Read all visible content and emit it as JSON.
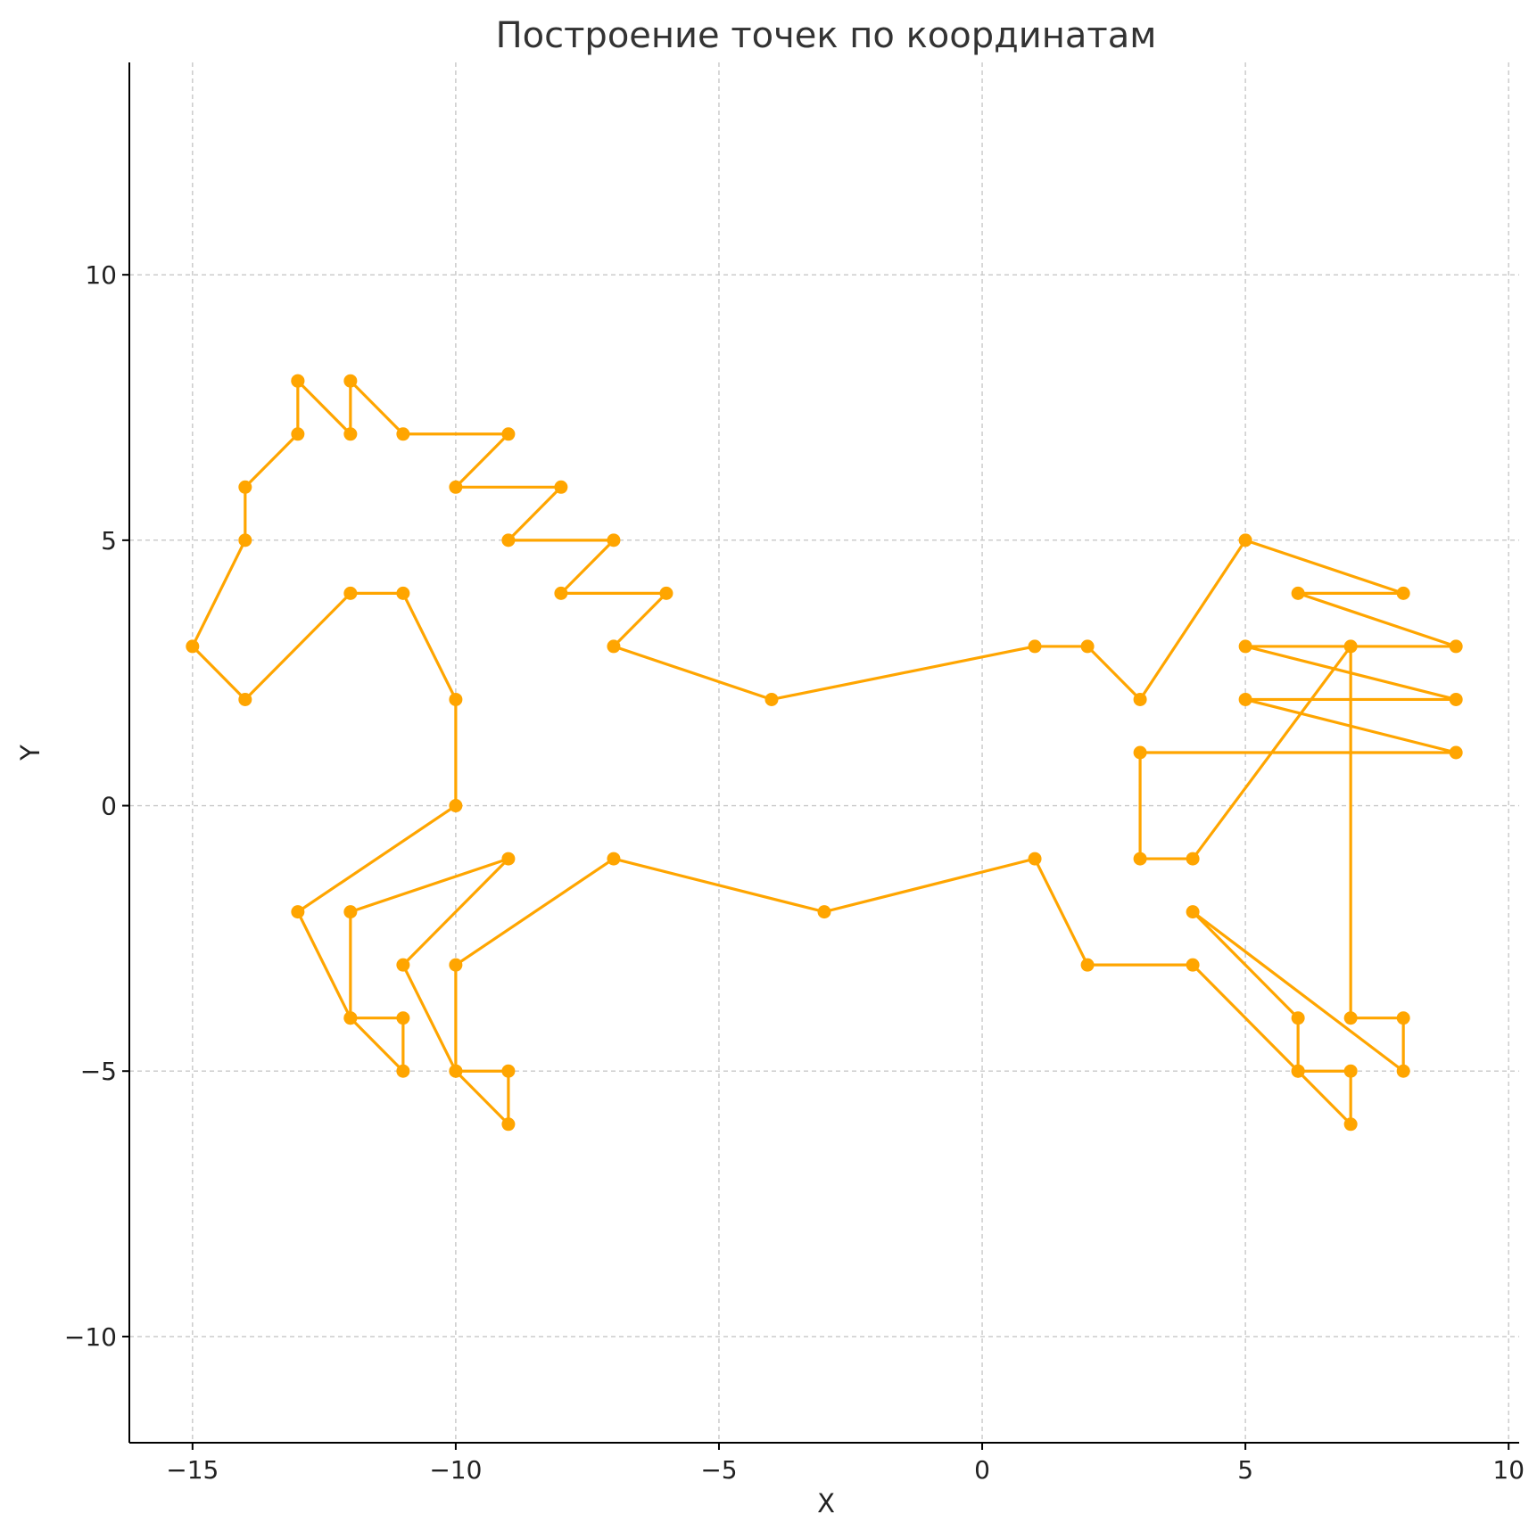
{
  "chart_data": {
    "type": "line",
    "title": "Построение точек по координатам",
    "xlabel": "X",
    "ylabel": "Y",
    "xlim": [
      -16.2,
      10.2
    ],
    "ylim": [
      -12,
      14
    ],
    "grid": true,
    "color": "#FFA500",
    "x_ticks": [
      {
        "value": -15,
        "label": "−15"
      },
      {
        "value": -10,
        "label": "−10"
      },
      {
        "value": -5,
        "label": "−5"
      },
      {
        "value": 0,
        "label": "0"
      },
      {
        "value": 5,
        "label": "5"
      },
      {
        "value": 10,
        "label": "10"
      }
    ],
    "y_ticks": [
      {
        "value": 10,
        "label": "10"
      },
      {
        "value": 5,
        "label": "5"
      },
      {
        "value": 0,
        "label": "0"
      },
      {
        "value": -5,
        "label": "−5"
      },
      {
        "value": -10,
        "label": "−10"
      }
    ],
    "series": [
      {
        "points": [
          [
            -13,
            8
          ],
          [
            -13,
            7
          ],
          [
            -14,
            6
          ],
          [
            -14,
            5
          ],
          [
            -15,
            3
          ],
          [
            -14,
            2
          ],
          [
            -12,
            4
          ],
          [
            -11,
            4
          ],
          [
            -10,
            2
          ],
          [
            -10,
            0
          ],
          [
            -13,
            -2
          ],
          [
            -12,
            -4
          ],
          [
            -11,
            -5
          ],
          [
            -11,
            -4
          ],
          [
            -12,
            -4
          ],
          [
            -12,
            -2
          ],
          [
            -9,
            -1
          ],
          [
            -11,
            -3
          ],
          [
            -10,
            -5
          ],
          [
            -9,
            -6
          ],
          [
            -9,
            -5
          ],
          [
            -10,
            -5
          ],
          [
            -10,
            -3
          ],
          [
            -7,
            -1
          ],
          [
            -3,
            -2
          ],
          [
            1,
            -1
          ],
          [
            2,
            -3
          ],
          [
            4,
            -3
          ],
          [
            6,
            -5
          ],
          [
            7,
            -6
          ],
          [
            7,
            -5
          ],
          [
            6,
            -5
          ],
          [
            6,
            -4
          ],
          [
            4,
            -2
          ],
          [
            8,
            -5
          ],
          [
            8,
            -4
          ],
          [
            7,
            -4
          ],
          [
            7,
            3
          ],
          [
            4,
            -1
          ],
          [
            3,
            -1
          ],
          [
            3,
            1
          ],
          [
            9,
            1
          ],
          [
            5,
            2
          ],
          [
            9,
            2
          ],
          [
            5,
            3
          ],
          [
            9,
            3
          ],
          [
            6,
            4
          ],
          [
            8,
            4
          ],
          [
            5,
            5
          ],
          [
            3,
            2
          ],
          [
            2,
            3
          ],
          [
            1,
            3
          ],
          [
            -4,
            2
          ],
          [
            -7,
            3
          ],
          [
            -6,
            4
          ],
          [
            -8,
            4
          ],
          [
            -7,
            5
          ],
          [
            -9,
            5
          ],
          [
            -8,
            6
          ],
          [
            -10,
            6
          ],
          [
            -9,
            7
          ],
          [
            -11,
            7
          ],
          [
            -12,
            8
          ],
          [
            -12,
            7
          ],
          [
            -13,
            8
          ]
        ]
      }
    ]
  }
}
